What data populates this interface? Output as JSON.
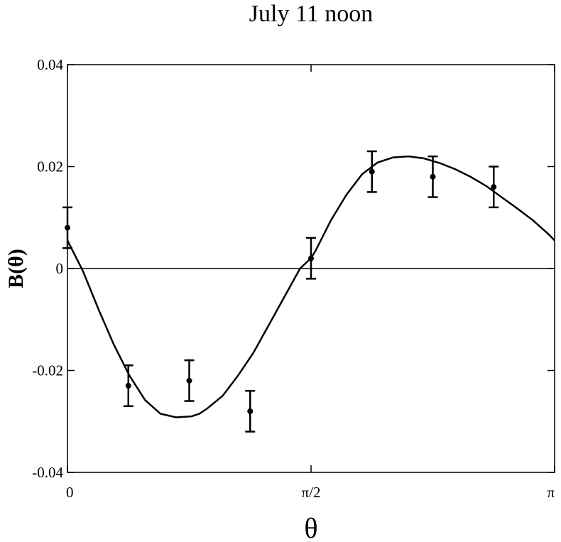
{
  "chart_data": {
    "type": "scatter",
    "title": "July 11 noon",
    "xlabel": "θ",
    "ylabel": "B(θ)",
    "xlim": [
      0,
      3.14159
    ],
    "ylim": [
      -0.04,
      0.04
    ],
    "x_ticks": [
      {
        "value": 0,
        "label": "0"
      },
      {
        "value": 1.5708,
        "label": "π/2"
      },
      {
        "value": 3.14159,
        "label": "π"
      }
    ],
    "y_ticks": [
      {
        "value": 0.04,
        "label": "0.04"
      },
      {
        "value": 0.02,
        "label": "0.02"
      },
      {
        "value": 0,
        "label": "0"
      },
      {
        "value": -0.02,
        "label": "-0.02"
      },
      {
        "value": -0.04,
        "label": "-0.04"
      }
    ],
    "grid": false,
    "zero_line": true,
    "series": [
      {
        "kind": "points-with-errorbars",
        "x": [
          0.0,
          0.3927,
          0.7854,
          1.1781,
          1.5708,
          1.9635,
          2.3562,
          2.7489
        ],
        "y": [
          0.008,
          -0.023,
          -0.022,
          -0.028,
          0.002,
          0.019,
          0.018,
          0.016
        ],
        "yerr": [
          0.004,
          0.004,
          0.004,
          0.004,
          0.004,
          0.004,
          0.004,
          0.004
        ]
      },
      {
        "kind": "fit-curve",
        "x": [
          0.0,
          0.1,
          0.2,
          0.3,
          0.4,
          0.5,
          0.6,
          0.7,
          0.8,
          0.85,
          0.9,
          1.0,
          1.1,
          1.2,
          1.3,
          1.4,
          1.5,
          1.57,
          1.6,
          1.7,
          1.8,
          1.9,
          2.0,
          2.1,
          2.2,
          2.3,
          2.4,
          2.5,
          2.6,
          2.7,
          2.8,
          2.9,
          3.0,
          3.1,
          3.14159
        ],
        "y": [
          0.0055,
          -0.0005,
          -0.008,
          -0.015,
          -0.021,
          -0.0258,
          -0.0285,
          -0.0292,
          -0.029,
          -0.0285,
          -0.0275,
          -0.025,
          -0.021,
          -0.0165,
          -0.011,
          -0.0055,
          0.0,
          0.002,
          0.0035,
          0.0095,
          0.0145,
          0.0185,
          0.0208,
          0.0218,
          0.022,
          0.0216,
          0.0207,
          0.0195,
          0.018,
          0.0162,
          0.014,
          0.0118,
          0.0095,
          0.0068,
          0.0055
        ]
      }
    ]
  }
}
